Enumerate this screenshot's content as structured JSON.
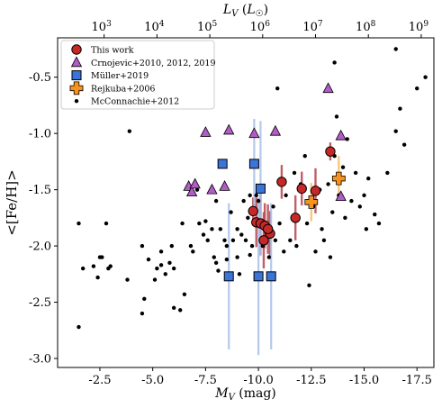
{
  "chart_data": {
    "type": "scatter",
    "xlabel": "M_V (mag)",
    "ylabel": "<[Fe/H]>",
    "top_xlabel": "L_V (L_☉)",
    "xlim": [
      -0.5,
      -18.3
    ],
    "ylim": [
      -3.08,
      -0.15
    ],
    "x_inverted": true,
    "x_ticks": [
      "-2.5",
      "-5.0",
      "-7.5",
      "-10.0",
      "-12.5",
      "-15.0",
      "-17.5"
    ],
    "x_tick_values": [
      -2.5,
      -5.0,
      -7.5,
      -10.0,
      -12.5,
      -15.0,
      -17.5
    ],
    "y_ticks": [
      "-3.0",
      "-2.5",
      "-2.0",
      "-1.5",
      "-1.0",
      "-0.5"
    ],
    "y_tick_values": [
      -3.0,
      -2.5,
      -2.0,
      -1.5,
      -1.0,
      -0.5
    ],
    "top_ticks": [
      "10^3",
      "10^4",
      "10^5",
      "10^6",
      "10^7",
      "10^8",
      "10^9"
    ],
    "top_tick_exponents": [
      "3",
      "4",
      "5",
      "6",
      "7",
      "8",
      "9"
    ],
    "top_tick_mv": [
      -2.7,
      -5.2,
      -7.7,
      -10.2,
      -12.7,
      -15.2,
      -17.7
    ],
    "legend_position": "top-left",
    "series": [
      {
        "name": "This work",
        "marker": "circle",
        "color": "#c62828",
        "errcolor": "#b5444c",
        "points": [
          {
            "x": -9.75,
            "y": -1.69,
            "e": 0.12
          },
          {
            "x": -9.9,
            "y": -1.79,
            "e": 0.22
          },
          {
            "x": -10.1,
            "y": -1.8,
            "e": 0.28
          },
          {
            "x": -10.3,
            "y": -1.82,
            "e": 0.2
          },
          {
            "x": -10.25,
            "y": -1.95,
            "e": 0.25
          },
          {
            "x": -10.55,
            "y": -1.89,
            "e": 0.2
          },
          {
            "x": -10.45,
            "y": -1.85,
            "e": 0.22
          },
          {
            "x": -11.1,
            "y": -1.43,
            "e": 0.15
          },
          {
            "x": -11.75,
            "y": -1.75,
            "e": 0.2
          },
          {
            "x": -12.05,
            "y": -1.49,
            "e": 0.15
          },
          {
            "x": -12.7,
            "y": -1.51,
            "e": 0.2
          },
          {
            "x": -13.4,
            "y": -1.16,
            "e": 0.08
          }
        ]
      },
      {
        "name": "Crnojevic+2010, 2012, 2019",
        "marker": "triangle",
        "color": "#b35cc7",
        "points": [
          {
            "x": -6.7,
            "y": -1.47
          },
          {
            "x": -6.85,
            "y": -1.52
          },
          {
            "x": -7.0,
            "y": -1.45
          },
          {
            "x": -7.8,
            "y": -1.5
          },
          {
            "x": -7.5,
            "y": -0.99
          },
          {
            "x": -8.4,
            "y": -1.47
          },
          {
            "x": -8.6,
            "y": -0.97
          },
          {
            "x": -9.8,
            "y": -1.0
          },
          {
            "x": -10.8,
            "y": -0.98
          },
          {
            "x": -13.3,
            "y": -0.6
          },
          {
            "x": -13.9,
            "y": -1.02
          },
          {
            "x": -13.9,
            "y": -1.56
          }
        ]
      },
      {
        "name": "Müller+2019",
        "marker": "square",
        "color": "#3b74d8",
        "errcolor": "#a8bfe8",
        "points": [
          {
            "x": -8.3,
            "y": -1.27,
            "e": 0.0
          },
          {
            "x": -8.6,
            "y": -2.27,
            "e": 0.65
          },
          {
            "x": -9.8,
            "y": -1.27,
            "e": 0.4
          },
          {
            "x": -10.1,
            "y": -1.49,
            "e": 0.6
          },
          {
            "x": -10.0,
            "y": -2.27,
            "e": 0.7
          },
          {
            "x": -10.6,
            "y": -2.27,
            "e": 0.65
          }
        ]
      },
      {
        "name": "Rejkuba+2006",
        "marker": "plus",
        "color": "#f5931e",
        "errcolor": "#f5c06b",
        "points": [
          {
            "x": -12.5,
            "y": -1.61,
            "e": 0.17
          },
          {
            "x": -13.8,
            "y": -1.4,
            "e": 0.2
          }
        ]
      },
      {
        "name": "McConnachie+2012",
        "marker": "dot",
        "color": "#000000",
        "points": [
          {
            "x": -1.5,
            "y": -2.72
          },
          {
            "x": -1.5,
            "y": -1.8
          },
          {
            "x": -1.7,
            "y": -2.2
          },
          {
            "x": -2.2,
            "y": -2.18
          },
          {
            "x": -2.4,
            "y": -2.28
          },
          {
            "x": -2.5,
            "y": -2.1
          },
          {
            "x": -2.6,
            "y": -2.1
          },
          {
            "x": -2.8,
            "y": -1.8
          },
          {
            "x": -2.9,
            "y": -2.2
          },
          {
            "x": -3.0,
            "y": -2.18
          },
          {
            "x": -3.8,
            "y": -2.3
          },
          {
            "x": -3.9,
            "y": -0.98
          },
          {
            "x": -4.5,
            "y": -2.0
          },
          {
            "x": -4.5,
            "y": -2.6
          },
          {
            "x": -4.6,
            "y": -2.47
          },
          {
            "x": -4.8,
            "y": -2.12
          },
          {
            "x": -5.1,
            "y": -2.3
          },
          {
            "x": -5.2,
            "y": -2.2
          },
          {
            "x": -5.4,
            "y": -2.05
          },
          {
            "x": -5.4,
            "y": -2.17
          },
          {
            "x": -5.6,
            "y": -2.25
          },
          {
            "x": -5.8,
            "y": -2.15
          },
          {
            "x": -5.9,
            "y": -2.0
          },
          {
            "x": -6.0,
            "y": -2.55
          },
          {
            "x": -6.0,
            "y": -2.2
          },
          {
            "x": -6.3,
            "y": -2.57
          },
          {
            "x": -6.4,
            "y": -1.8
          },
          {
            "x": -6.5,
            "y": -2.43
          },
          {
            "x": -6.8,
            "y": -2.0
          },
          {
            "x": -6.9,
            "y": -2.05
          },
          {
            "x": -7.1,
            "y": -1.5
          },
          {
            "x": -7.2,
            "y": -1.8
          },
          {
            "x": -7.4,
            "y": -1.9
          },
          {
            "x": -7.5,
            "y": -1.78
          },
          {
            "x": -7.6,
            "y": -1.95
          },
          {
            "x": -7.8,
            "y": -1.85
          },
          {
            "x": -7.9,
            "y": -2.1
          },
          {
            "x": -8.0,
            "y": -1.6
          },
          {
            "x": -8.0,
            "y": -2.15
          },
          {
            "x": -8.1,
            "y": -2.22
          },
          {
            "x": -8.2,
            "y": -1.85
          },
          {
            "x": -8.4,
            "y": -1.95
          },
          {
            "x": -8.5,
            "y": -2.0
          },
          {
            "x": -8.5,
            "y": -2.12
          },
          {
            "x": -8.7,
            "y": -1.7
          },
          {
            "x": -8.8,
            "y": -1.95
          },
          {
            "x": -9.0,
            "y": -1.85
          },
          {
            "x": -9.0,
            "y": -2.1
          },
          {
            "x": -9.1,
            "y": -2.25
          },
          {
            "x": -9.2,
            "y": -1.9
          },
          {
            "x": -9.3,
            "y": -1.6
          },
          {
            "x": -9.4,
            "y": -1.95
          },
          {
            "x": -9.5,
            "y": -1.75
          },
          {
            "x": -9.6,
            "y": -2.08
          },
          {
            "x": -9.6,
            "y": -1.55
          },
          {
            "x": -9.7,
            "y": -2.0
          },
          {
            "x": -9.8,
            "y": -1.7
          },
          {
            "x": -9.9,
            "y": -1.55
          },
          {
            "x": -10.0,
            "y": -1.6
          },
          {
            "x": -10.2,
            "y": -2.0
          },
          {
            "x": -10.4,
            "y": -1.85
          },
          {
            "x": -10.5,
            "y": -2.1
          },
          {
            "x": -10.7,
            "y": -1.65
          },
          {
            "x": -10.8,
            "y": -1.95
          },
          {
            "x": -11.0,
            "y": -1.8
          },
          {
            "x": -11.2,
            "y": -2.05
          },
          {
            "x": -11.3,
            "y": -1.55
          },
          {
            "x": -11.5,
            "y": -1.95
          },
          {
            "x": -11.7,
            "y": -1.35
          },
          {
            "x": -11.8,
            "y": -2.0
          },
          {
            "x": -12.0,
            "y": -1.45
          },
          {
            "x": -12.2,
            "y": -1.2
          },
          {
            "x": -12.3,
            "y": -1.8
          },
          {
            "x": -12.4,
            "y": -2.35
          },
          {
            "x": -12.6,
            "y": -1.65
          },
          {
            "x": -12.7,
            "y": -2.05
          },
          {
            "x": -12.9,
            "y": -1.5
          },
          {
            "x": -13.0,
            "y": -1.85
          },
          {
            "x": -13.1,
            "y": -1.95
          },
          {
            "x": -13.3,
            "y": -1.45
          },
          {
            "x": -13.4,
            "y": -2.1
          },
          {
            "x": -13.5,
            "y": -1.7
          },
          {
            "x": -13.6,
            "y": -1.2
          },
          {
            "x": -13.7,
            "y": -0.85
          },
          {
            "x": -13.8,
            "y": -1.55
          },
          {
            "x": -14.0,
            "y": -1.3
          },
          {
            "x": -14.1,
            "y": -1.75
          },
          {
            "x": -14.2,
            "y": -1.05
          },
          {
            "x": -14.4,
            "y": -1.6
          },
          {
            "x": -14.6,
            "y": -1.35
          },
          {
            "x": -14.8,
            "y": -1.65
          },
          {
            "x": -15.0,
            "y": -1.55
          },
          {
            "x": -15.1,
            "y": -1.85
          },
          {
            "x": -15.2,
            "y": -1.4
          },
          {
            "x": -15.5,
            "y": -1.72
          },
          {
            "x": -15.7,
            "y": -1.8
          },
          {
            "x": -16.1,
            "y": -1.35
          },
          {
            "x": -16.5,
            "y": -0.98
          },
          {
            "x": -16.7,
            "y": -0.78
          },
          {
            "x": -16.9,
            "y": -1.1
          },
          {
            "x": -17.5,
            "y": -0.6
          },
          {
            "x": -17.9,
            "y": -0.5
          },
          {
            "x": -16.5,
            "y": -0.25
          },
          {
            "x": -13.6,
            "y": -0.37
          },
          {
            "x": -10.9,
            "y": -0.6
          }
        ]
      }
    ]
  }
}
